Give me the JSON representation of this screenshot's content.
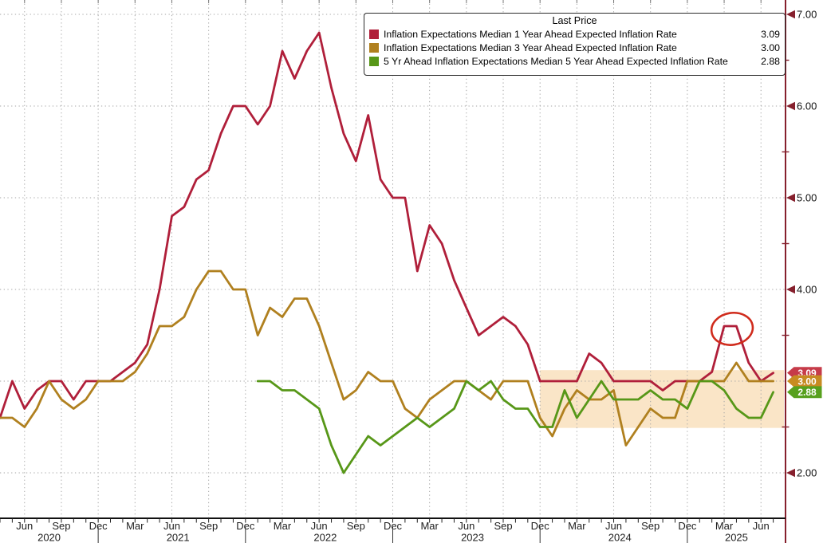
{
  "chart": {
    "legend": {
      "title": "Last Price",
      "series": [
        {
          "label": "Inflation Expectations Median 1 Year Ahead Expected Inflation Rate",
          "last_price": "3.09",
          "color": "#b01f3a"
        },
        {
          "label": "Inflation Expectations Median 3 Year Ahead Expected Inflation Rate",
          "last_price": "3.00",
          "color": "#b0801f"
        },
        {
          "label": "5 Yr Ahead Inflation Expectations Median 5 Year Ahead Expected Inflation Rate",
          "last_price": "2.88",
          "color": "#579718"
        }
      ]
    },
    "y_axis": {
      "side": "right",
      "axis_color": "#86202d",
      "tick_labels": [
        "7.00",
        "6.00",
        "5.00",
        "4.00",
        "2.00"
      ],
      "tick_values": [
        7,
        6,
        5,
        4,
        2
      ],
      "minor_tick_values": [
        2.5,
        3.5,
        4.5,
        5.5,
        6.5
      ]
    },
    "x_axis": {
      "quarter_labels": [
        "Jun",
        "Sep",
        "Dec",
        "Mar"
      ],
      "year_labels": [
        "2020",
        "2021",
        "2022",
        "2023",
        "2024",
        "2025"
      ]
    },
    "price_tags": [
      {
        "text": "3.09",
        "value": 3.09,
        "color": "#c63b49"
      },
      {
        "text": "3.00",
        "value": 3.0,
        "color": "#c78b22"
      },
      {
        "text": "2.88",
        "value": 2.88,
        "color": "#57a01e"
      }
    ]
  },
  "chart_data": {
    "type": "line",
    "title": "",
    "x_unit": "month",
    "grid": "dotted",
    "legend_position": "top-right",
    "ylim": [
      2.0,
      7.0
    ],
    "x": [
      "2020-04",
      "2020-05",
      "2020-06",
      "2020-07",
      "2020-08",
      "2020-09",
      "2020-10",
      "2020-11",
      "2020-12",
      "2021-01",
      "2021-02",
      "2021-03",
      "2021-04",
      "2021-05",
      "2021-06",
      "2021-07",
      "2021-08",
      "2021-09",
      "2021-10",
      "2021-11",
      "2021-12",
      "2022-01",
      "2022-02",
      "2022-03",
      "2022-04",
      "2022-05",
      "2022-06",
      "2022-07",
      "2022-08",
      "2022-09",
      "2022-10",
      "2022-11",
      "2022-12",
      "2023-01",
      "2023-02",
      "2023-03",
      "2023-04",
      "2023-05",
      "2023-06",
      "2023-07",
      "2023-08",
      "2023-09",
      "2023-10",
      "2023-11",
      "2023-12",
      "2024-01",
      "2024-02",
      "2024-03",
      "2024-04",
      "2024-05",
      "2024-06",
      "2024-07",
      "2024-08",
      "2024-09",
      "2024-10",
      "2024-11",
      "2024-12",
      "2025-01",
      "2025-02",
      "2025-03",
      "2025-04",
      "2025-05",
      "2025-06",
      "2025-07"
    ],
    "series": [
      {
        "name": "Inflation Expectations Median 1 Year Ahead Expected Inflation Rate",
        "short": "1yr",
        "color": "#b01f3a",
        "last_price": 3.09,
        "values": [
          2.6,
          3.0,
          2.7,
          2.9,
          3.0,
          3.0,
          2.8,
          3.0,
          3.0,
          3.0,
          3.1,
          3.2,
          3.4,
          4.0,
          4.8,
          4.9,
          5.2,
          5.3,
          5.7,
          6.0,
          6.0,
          5.8,
          6.0,
          6.6,
          6.3,
          6.6,
          6.8,
          6.2,
          5.7,
          5.4,
          5.9,
          5.2,
          5.0,
          5.0,
          4.2,
          4.7,
          4.5,
          4.1,
          3.8,
          3.5,
          3.6,
          3.7,
          3.6,
          3.4,
          3.0,
          3.0,
          3.0,
          3.0,
          3.3,
          3.2,
          3.0,
          3.0,
          3.0,
          3.0,
          2.9,
          3.0,
          3.0,
          3.0,
          3.1,
          3.6,
          3.6,
          3.2,
          3.0,
          3.09
        ]
      },
      {
        "name": "Inflation Expectations Median 3 Year Ahead Expected Inflation Rate",
        "short": "3yr",
        "color": "#b0801f",
        "last_price": 3.0,
        "values": [
          2.6,
          2.6,
          2.5,
          2.7,
          3.0,
          2.8,
          2.7,
          2.8,
          3.0,
          3.0,
          3.0,
          3.1,
          3.3,
          3.6,
          3.6,
          3.7,
          4.0,
          4.2,
          4.2,
          4.0,
          4.0,
          3.5,
          3.8,
          3.7,
          3.9,
          3.9,
          3.6,
          3.2,
          2.8,
          2.9,
          3.1,
          3.0,
          3.0,
          2.7,
          2.6,
          2.8,
          2.9,
          3.0,
          3.0,
          2.9,
          2.8,
          3.0,
          3.0,
          3.0,
          2.6,
          2.4,
          2.7,
          2.9,
          2.8,
          2.8,
          2.9,
          2.3,
          2.5,
          2.7,
          2.6,
          2.6,
          3.0,
          3.0,
          3.0,
          3.0,
          3.2,
          3.0,
          3.0,
          3.0
        ]
      },
      {
        "name": "5 Yr Ahead Inflation Expectations Median 5 Year Ahead Expected Inflation Rate",
        "short": "5yr",
        "color": "#579718",
        "last_price": 2.88,
        "values": [
          null,
          null,
          null,
          null,
          null,
          null,
          null,
          null,
          null,
          null,
          null,
          null,
          null,
          null,
          null,
          null,
          null,
          null,
          null,
          null,
          null,
          3.0,
          3.0,
          2.9,
          2.9,
          2.8,
          2.7,
          2.3,
          2.0,
          2.2,
          2.4,
          2.3,
          2.4,
          2.5,
          2.6,
          2.5,
          2.6,
          2.7,
          3.0,
          2.9,
          3.0,
          2.8,
          2.7,
          2.7,
          2.5,
          2.5,
          2.9,
          2.6,
          2.8,
          3.0,
          2.8,
          2.8,
          2.8,
          2.9,
          2.8,
          2.8,
          2.7,
          3.0,
          3.0,
          2.9,
          2.7,
          2.6,
          2.6,
          2.88
        ]
      }
    ],
    "highlight_band": {
      "from_month": "2023-12",
      "to": "right-edge",
      "value_top": 3.12,
      "value_bottom": 2.49,
      "color": "#fae5c7"
    },
    "annotation_circle": {
      "around": "2025 spike of 1-year series",
      "center_month": "2025-03",
      "center_month_offset": 0.65,
      "center_value": 3.57,
      "color": "#d02b1c"
    }
  }
}
